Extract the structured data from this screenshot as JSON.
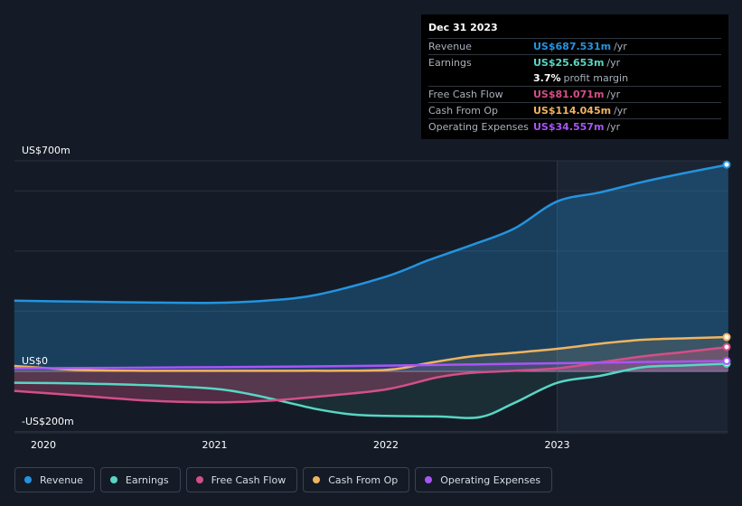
{
  "chart_data": {
    "type": "area",
    "title": "",
    "xlabel": "",
    "ylabel": "",
    "y_unit_labels": [
      "US$700m",
      "US$0",
      "-US$200m"
    ],
    "ylim": [
      -200,
      700
    ],
    "x_ticks": [
      "2020",
      "2021",
      "2022",
      "2023"
    ],
    "xlim": [
      2019.83,
      2024.0
    ],
    "highlight_from": 2023.0,
    "series": [
      {
        "name": "Revenue",
        "color": "#2394df",
        "x": [
          2019.83,
          2020.2,
          2020.6,
          2021.0,
          2021.3,
          2021.6,
          2022.0,
          2022.25,
          2022.5,
          2022.75,
          2023.0,
          2023.25,
          2023.5,
          2023.75,
          2024.0
        ],
        "values": [
          235,
          232,
          229,
          228,
          235,
          255,
          315,
          370,
          420,
          475,
          565,
          595,
          630,
          660,
          687.531
        ]
      },
      {
        "name": "Earnings",
        "color": "#58d6c4",
        "x": [
          2019.83,
          2020.2,
          2020.6,
          2021.0,
          2021.2,
          2021.4,
          2021.6,
          2021.8,
          2022.0,
          2022.3,
          2022.55,
          2022.75,
          2023.0,
          2023.25,
          2023.5,
          2023.75,
          2024.0
        ],
        "values": [
          -38,
          -40,
          -46,
          -58,
          -75,
          -100,
          -126,
          -143,
          -148,
          -150,
          -152,
          -105,
          -38,
          -15,
          14,
          20,
          25.653
        ]
      },
      {
        "name": "Free Cash Flow",
        "color": "#d34f87",
        "x": [
          2019.83,
          2020.2,
          2020.6,
          2021.0,
          2021.3,
          2021.6,
          2022.0,
          2022.3,
          2022.5,
          2022.75,
          2023.0,
          2023.25,
          2023.5,
          2023.75,
          2024.0
        ],
        "values": [
          -65,
          -80,
          -97,
          -103,
          -98,
          -84,
          -60,
          -20,
          -5,
          2,
          10,
          30,
          50,
          65,
          81.071
        ]
      },
      {
        "name": "Cash From Op",
        "color": "#f0b460",
        "x": [
          2019.83,
          2020.2,
          2020.6,
          2021.0,
          2021.5,
          2022.0,
          2022.25,
          2022.5,
          2022.75,
          2023.0,
          2023.25,
          2023.5,
          2023.75,
          2024.0
        ],
        "values": [
          18,
          5,
          2,
          2,
          2,
          5,
          28,
          50,
          62,
          75,
          92,
          105,
          110,
          114.045
        ]
      },
      {
        "name": "Operating Expenses",
        "color": "#a855f7",
        "x": [
          2019.83,
          2020.5,
          2021.0,
          2021.5,
          2022.0,
          2022.5,
          2023.0,
          2023.5,
          2024.0
        ],
        "values": [
          10,
          12,
          14,
          16,
          19,
          23,
          27,
          31,
          34.557
        ]
      }
    ]
  },
  "tooltip": {
    "date": "Dec 31 2023",
    "rows": [
      {
        "label": "Revenue",
        "value": "US$687.531m",
        "unit": "/yr",
        "color": "#2394df"
      },
      {
        "label": "Earnings",
        "value": "US$25.653m",
        "unit": "/yr",
        "color": "#58d6c4"
      },
      {
        "label": "Free Cash Flow",
        "value": "US$81.071m",
        "unit": "/yr",
        "color": "#d34f87"
      },
      {
        "label": "Cash From Op",
        "value": "US$114.045m",
        "unit": "/yr",
        "color": "#f0b460"
      },
      {
        "label": "Operating Expenses",
        "value": "US$34.557m",
        "unit": "/yr",
        "color": "#a855f7"
      }
    ],
    "margin_value": "3.7%",
    "margin_text": "profit margin"
  },
  "legend": [
    {
      "label": "Revenue",
      "color": "#2394df"
    },
    {
      "label": "Earnings",
      "color": "#58d6c4"
    },
    {
      "label": "Free Cash Flow",
      "color": "#d34f87"
    },
    {
      "label": "Cash From Op",
      "color": "#f0b460"
    },
    {
      "label": "Operating Expenses",
      "color": "#a855f7"
    }
  ]
}
